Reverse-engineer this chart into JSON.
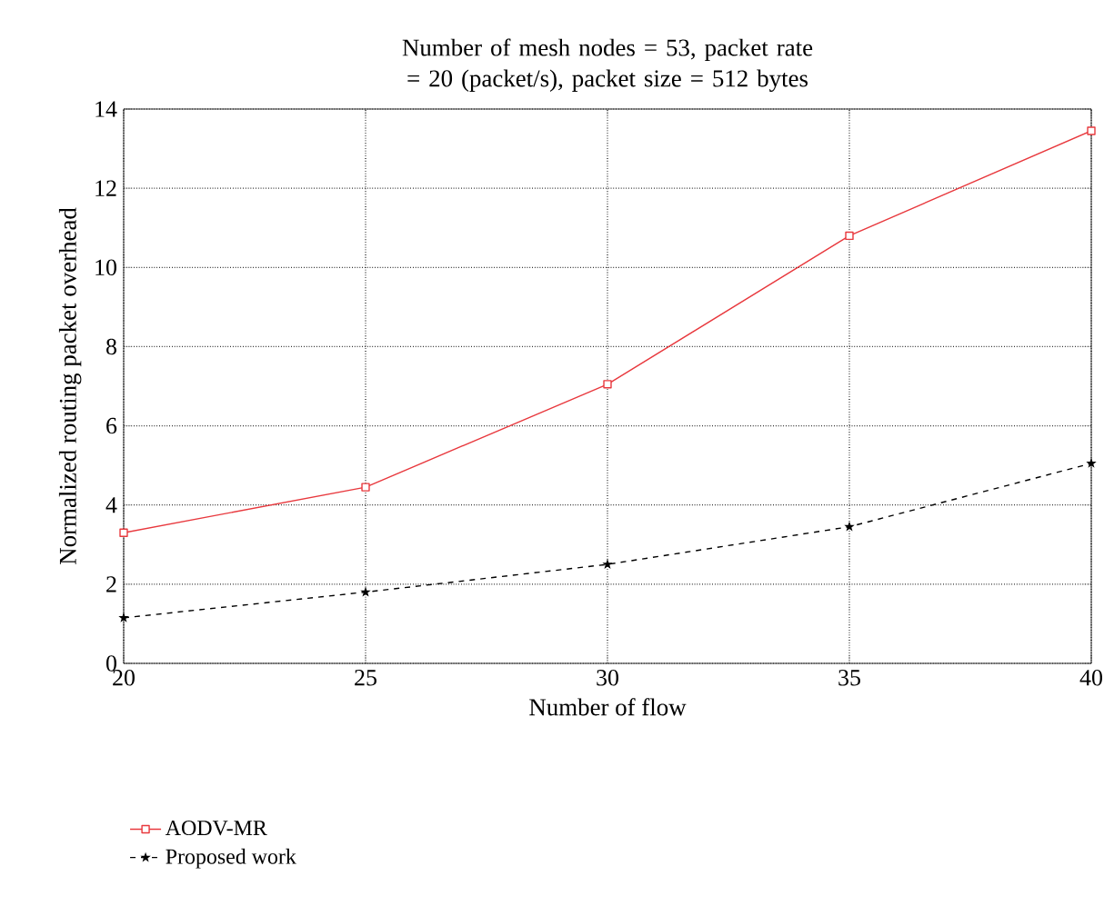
{
  "chart_data": {
    "type": "line",
    "title": "Number of mesh nodes = 53, packet rate = 20 (packet/s), packet size = 512 bytes",
    "xlabel": "Number of flow",
    "ylabel": "Normalized routing packet overhead",
    "x": [
      20,
      25,
      30,
      35,
      40
    ],
    "series": [
      {
        "name": "AODV-MR",
        "color": "#e8383d",
        "values": [
          3.3,
          4.45,
          7.05,
          10.8,
          13.45
        ],
        "marker": "square",
        "line_style": "solid"
      },
      {
        "name": "Proposed work",
        "color": "#000000",
        "values": [
          1.15,
          1.8,
          2.5,
          3.45,
          5.05
        ],
        "marker": "star",
        "line_style": "dashed"
      }
    ],
    "xlim": [
      20,
      40
    ],
    "ylim": [
      0,
      14
    ],
    "xticks": [
      20,
      25,
      30,
      35,
      40
    ],
    "yticks": [
      0,
      2,
      4,
      6,
      8,
      10,
      12,
      14
    ],
    "grid": true,
    "legend": "bottom left"
  }
}
